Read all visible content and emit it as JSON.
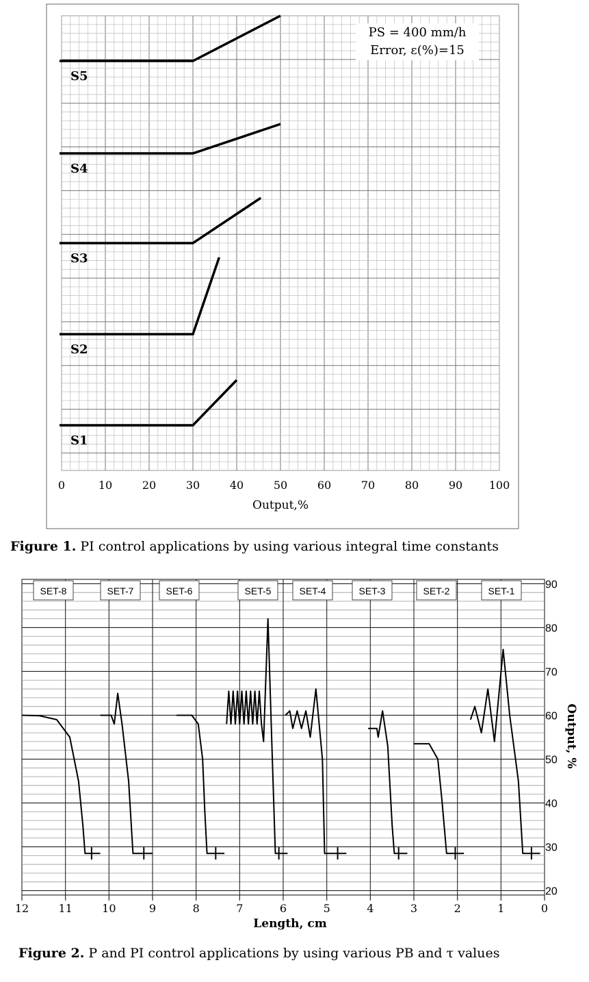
{
  "figure1": {
    "caption_label": "Figure 1.",
    "caption_text": " PI control applications by using various integral time constants",
    "chart_data": {
      "type": "line",
      "xlabel": "Output,%",
      "ylabel": "",
      "xlim": [
        0,
        100
      ],
      "x_ticks": [
        "0",
        "10",
        "20",
        "30",
        "40",
        "50",
        "60",
        "70",
        "80",
        "90",
        "100"
      ],
      "grid": true,
      "annotations": [
        "PS = 400 mm/h",
        "Error, ε(%)=15"
      ],
      "series": [
        {
          "name": "S5",
          "points": [
            [
              0,
              0
            ],
            [
              30,
              0
            ],
            [
              50,
              1
            ]
          ]
        },
        {
          "name": "S4",
          "points": [
            [
              0,
              0
            ],
            [
              30,
              0
            ],
            [
              50,
              0.65
            ]
          ]
        },
        {
          "name": "S3",
          "points": [
            [
              0,
              0
            ],
            [
              30,
              0
            ],
            [
              45.5,
              1
            ]
          ]
        },
        {
          "name": "S2",
          "points": [
            [
              0,
              0
            ],
            [
              30,
              0
            ],
            [
              36,
              1.7
            ]
          ]
        },
        {
          "name": "S1",
          "points": [
            [
              0,
              0
            ],
            [
              30,
              0
            ],
            [
              40,
              1
            ]
          ]
        }
      ]
    }
  },
  "figure2": {
    "caption_label": "Figure 2.",
    "caption_text": " P and PI control applications by using various PB and τ values",
    "chart_data": {
      "type": "line",
      "xlabel": "Length, cm",
      "ylabel": "Output, %",
      "xlim": [
        12,
        0
      ],
      "ylim": [
        19,
        91
      ],
      "x_ticks": [
        "12",
        "11",
        "10",
        "9",
        "8",
        "7",
        "6",
        "5",
        "4",
        "3",
        "2",
        "1",
        "0"
      ],
      "y_ticks": [
        "20",
        "30",
        "40",
        "50",
        "60",
        "70",
        "80",
        "90"
      ],
      "grid": true,
      "sets": [
        "SET-8",
        "SET-7",
        "SET-6",
        "SET-5",
        "SET-4",
        "SET-3",
        "SET-2",
        "SET-1"
      ],
      "series": [
        {
          "name": "SET-8",
          "points": [
            [
              12,
              60
            ],
            [
              11.6,
              59.9
            ],
            [
              11.2,
              59
            ],
            [
              10.9,
              55
            ],
            [
              10.7,
              45
            ],
            [
              10.6,
              35
            ],
            [
              10.55,
              28.5
            ],
            [
              10.2,
              28.5
            ]
          ]
        },
        {
          "name": "SET-7",
          "points": [
            [
              10.2,
              60
            ],
            [
              9.95,
              60
            ],
            [
              9.88,
              58
            ],
            [
              9.8,
              65
            ],
            [
              9.7,
              58
            ],
            [
              9.55,
              45
            ],
            [
              9.45,
              28.5
            ],
            [
              9.0,
              28.5
            ]
          ]
        },
        {
          "name": "SET-6",
          "points": [
            [
              8.45,
              60
            ],
            [
              8.1,
              60
            ],
            [
              7.95,
              58
            ],
            [
              7.85,
              50
            ],
            [
              7.8,
              38
            ],
            [
              7.75,
              28.5
            ],
            [
              7.35,
              28.5
            ]
          ]
        },
        {
          "name": "SET-5",
          "points": [
            [
              7.3,
              58
            ],
            [
              7.25,
              65.5
            ],
            [
              7.2,
              58
            ],
            [
              7.15,
              65.5
            ],
            [
              7.1,
              58
            ],
            [
              7.05,
              65.5
            ],
            [
              7.0,
              58
            ],
            [
              6.95,
              65.5
            ],
            [
              6.9,
              58
            ],
            [
              6.85,
              65.5
            ],
            [
              6.8,
              58
            ],
            [
              6.75,
              65.5
            ],
            [
              6.7,
              58
            ],
            [
              6.65,
              65.5
            ],
            [
              6.6,
              58
            ],
            [
              6.55,
              65.5
            ],
            [
              6.5,
              58
            ],
            [
              6.45,
              54
            ],
            [
              6.35,
              82
            ],
            [
              6.25,
              50
            ],
            [
              6.18,
              28.5
            ],
            [
              5.9,
              28.5
            ]
          ]
        },
        {
          "name": "SET-4",
          "points": [
            [
              5.95,
              60
            ],
            [
              5.85,
              61
            ],
            [
              5.78,
              57
            ],
            [
              5.68,
              61
            ],
            [
              5.58,
              57
            ],
            [
              5.48,
              61
            ],
            [
              5.38,
              55
            ],
            [
              5.25,
              66
            ],
            [
              5.1,
              50
            ],
            [
              5.05,
              28.5
            ],
            [
              4.55,
              28.5
            ]
          ]
        },
        {
          "name": "SET-3",
          "points": [
            [
              4.05,
              57
            ],
            [
              3.85,
              57
            ],
            [
              3.82,
              55
            ],
            [
              3.72,
              61
            ],
            [
              3.6,
              53
            ],
            [
              3.5,
              35
            ],
            [
              3.45,
              28.5
            ],
            [
              3.15,
              28.5
            ]
          ]
        },
        {
          "name": "SET-2",
          "points": [
            [
              3.0,
              53.5
            ],
            [
              2.65,
              53.5
            ],
            [
              2.45,
              50
            ],
            [
              2.35,
              40
            ],
            [
              2.25,
              28.5
            ],
            [
              1.85,
              28.5
            ]
          ]
        },
        {
          "name": "SET-1",
          "points": [
            [
              1.7,
              59
            ],
            [
              1.6,
              62
            ],
            [
              1.45,
              56
            ],
            [
              1.3,
              66
            ],
            [
              1.15,
              54
            ],
            [
              0.95,
              75
            ],
            [
              0.8,
              60
            ],
            [
              0.6,
              45
            ],
            [
              0.5,
              28.5
            ],
            [
              0.1,
              28.5
            ]
          ]
        }
      ]
    }
  }
}
